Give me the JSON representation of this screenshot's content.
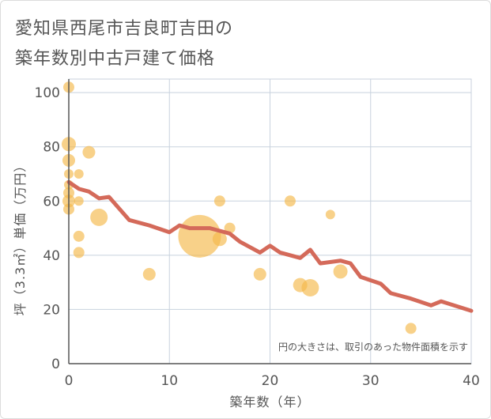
{
  "title": {
    "line1": "愛知県西尾市吉良町吉田の",
    "line2": "築年数別中古戸建て価格"
  },
  "chart_data": {
    "type": "scatter",
    "title": "愛知県西尾市吉良町吉田の築年数別中古戸建て価格",
    "xlabel": "築年数（年）",
    "ylabel": "坪（3.3㎡）単価（万円）",
    "xlim": [
      0,
      40
    ],
    "ylim": [
      0,
      105
    ],
    "xticks": [
      0,
      10,
      20,
      30,
      40
    ],
    "yticks": [
      0,
      20,
      40,
      60,
      80,
      100
    ],
    "grid": true,
    "annotation": "円の大きさは、取引のあった物件面積を示す",
    "colors": {
      "bubble": "#f5b84a",
      "trend": "#d46a5a",
      "grid": "#c8d2de",
      "axis": "#555555"
    },
    "bubbles": [
      {
        "x": 0,
        "y": 102,
        "size": 7
      },
      {
        "x": 0,
        "y": 81,
        "size": 9
      },
      {
        "x": 0,
        "y": 75,
        "size": 8
      },
      {
        "x": 0,
        "y": 70,
        "size": 6
      },
      {
        "x": 0,
        "y": 66,
        "size": 6
      },
      {
        "x": 0,
        "y": 63,
        "size": 7
      },
      {
        "x": 0,
        "y": 60,
        "size": 8
      },
      {
        "x": 0,
        "y": 57,
        "size": 7
      },
      {
        "x": 1,
        "y": 70,
        "size": 6
      },
      {
        "x": 1,
        "y": 60,
        "size": 6
      },
      {
        "x": 1,
        "y": 47,
        "size": 7
      },
      {
        "x": 1,
        "y": 41,
        "size": 7
      },
      {
        "x": 2,
        "y": 78,
        "size": 8
      },
      {
        "x": 3,
        "y": 54,
        "size": 11
      },
      {
        "x": 8,
        "y": 33,
        "size": 8
      },
      {
        "x": 13,
        "y": 47,
        "size": 27
      },
      {
        "x": 15,
        "y": 60,
        "size": 7
      },
      {
        "x": 15,
        "y": 46,
        "size": 9
      },
      {
        "x": 16,
        "y": 50,
        "size": 7
      },
      {
        "x": 19,
        "y": 33,
        "size": 8
      },
      {
        "x": 22,
        "y": 60,
        "size": 7
      },
      {
        "x": 23,
        "y": 29,
        "size": 9
      },
      {
        "x": 24,
        "y": 28,
        "size": 11
      },
      {
        "x": 26,
        "y": 55,
        "size": 6
      },
      {
        "x": 27,
        "y": 34,
        "size": 9
      },
      {
        "x": 34,
        "y": 13,
        "size": 7
      }
    ],
    "trend": {
      "x": [
        0,
        1,
        2,
        3,
        4,
        6,
        8,
        10,
        11,
        12,
        13,
        14,
        15,
        16,
        17,
        19,
        20,
        21,
        23,
        24,
        25,
        27,
        28,
        29,
        31,
        32,
        34,
        36,
        37,
        40
      ],
      "y": [
        67,
        64.5,
        63.5,
        61,
        61.5,
        53,
        51,
        48.5,
        51,
        50,
        50,
        50,
        49,
        48,
        45,
        41,
        43.5,
        41,
        39,
        42,
        37,
        38,
        37,
        32,
        29.5,
        26,
        24,
        21.5,
        23,
        19.5
      ]
    }
  }
}
